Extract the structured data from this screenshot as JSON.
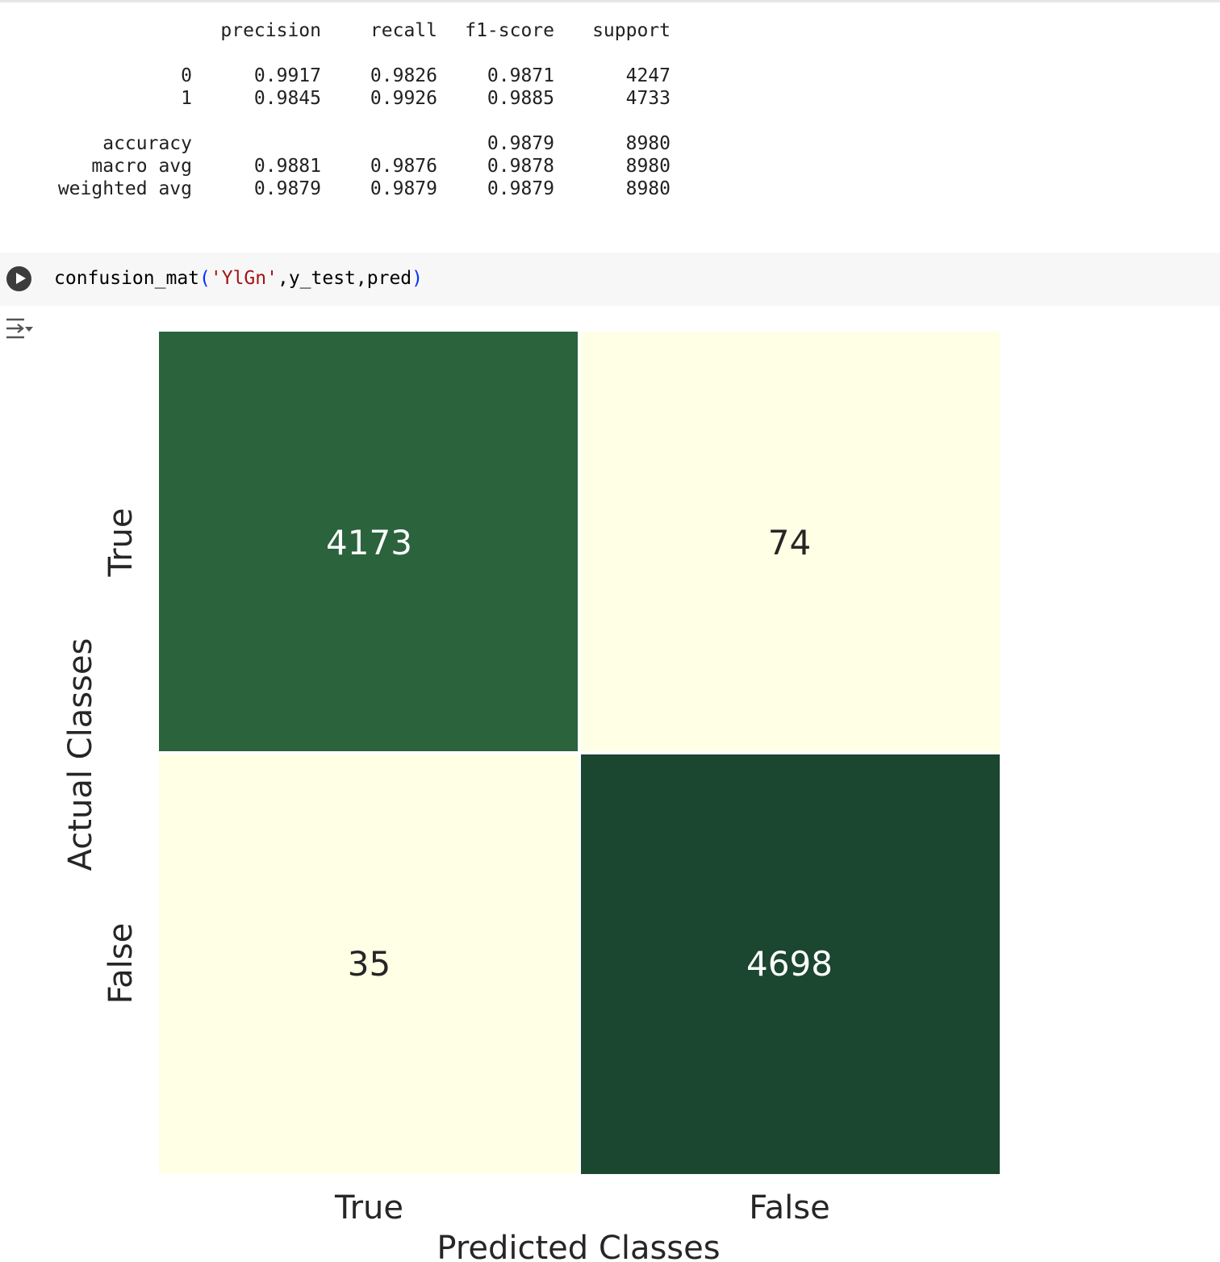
{
  "report": {
    "header": [
      "precision",
      "recall",
      "f1-score",
      "support"
    ],
    "rows": [
      {
        "label": "0",
        "precision": "0.9917",
        "recall": "0.9826",
        "f1": "0.9871",
        "support": "4247"
      },
      {
        "label": "1",
        "precision": "0.9845",
        "recall": "0.9926",
        "f1": "0.9885",
        "support": "4733"
      },
      {
        "label": "accuracy",
        "precision": "",
        "recall": "",
        "f1": "0.9879",
        "support": "8980"
      },
      {
        "label": "macro avg",
        "precision": "0.9881",
        "recall": "0.9876",
        "f1": "0.9878",
        "support": "8980"
      },
      {
        "label": "weighted avg",
        "precision": "0.9879",
        "recall": "0.9879",
        "f1": "0.9879",
        "support": "8980"
      }
    ]
  },
  "code_cell": {
    "func": "confusion_mat",
    "open_paren": "(",
    "arg_string": "'YlGn'",
    "rest_args": ",y_test,pred",
    "close_paren": ")",
    "run_icon": "play-icon",
    "output_icon": "output-toggle-icon"
  },
  "chart_data": {
    "type": "heatmap",
    "colormap": "YlGn",
    "xlabel": "Predicted Classes",
    "ylabel": "Actual Classes",
    "x_categories": [
      "True",
      "False"
    ],
    "y_categories": [
      "True",
      "False"
    ],
    "values": [
      [
        4173,
        74
      ],
      [
        35,
        4698
      ]
    ],
    "colors": [
      [
        "#2a633c",
        "#ffffe5"
      ],
      [
        "#ffffe5",
        "#1b462f"
      ]
    ],
    "text_colors": [
      [
        "#ffffff",
        "#262626"
      ],
      [
        "#262626",
        "#ffffff"
      ]
    ],
    "colorbar": false
  }
}
